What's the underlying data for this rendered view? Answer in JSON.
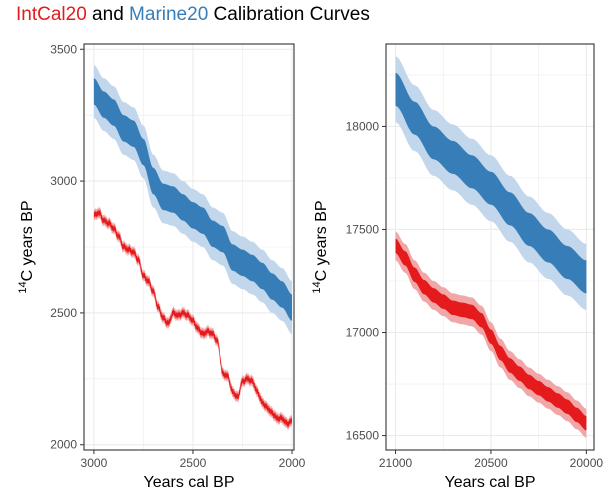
{
  "title": {
    "part1": "IntCal20",
    "part2": " and ",
    "part3": "Marine20",
    "part4": " Calibration Curves"
  },
  "colors": {
    "intcal": "#E41A1C",
    "intcal_light": "#F1A7A8",
    "marine": "#377EB8",
    "marine_light": "#C2D7EC",
    "grid": "#ebebeb",
    "panel_border": "#333333"
  },
  "chart_data": [
    {
      "type": "area",
      "xlabel": "Years cal BP",
      "ylabel": "C years BP",
      "ylabel_superscript": "14",
      "x_reversed": true,
      "xlim": [
        3050,
        1990
      ],
      "ylim": [
        1980,
        3520
      ],
      "x_ticks": [
        3000,
        2500,
        2000
      ],
      "y_ticks": [
        2000,
        2500,
        3000,
        3500
      ],
      "grid": true,
      "series": [
        {
          "name": "Marine20",
          "color_key": "marine",
          "x": [
            3000,
            2950,
            2900,
            2850,
            2800,
            2750,
            2700,
            2650,
            2600,
            2550,
            2500,
            2450,
            2400,
            2350,
            2300,
            2250,
            2200,
            2150,
            2100,
            2050,
            2000
          ],
          "y": [
            3340,
            3290,
            3260,
            3200,
            3180,
            3110,
            3000,
            2940,
            2930,
            2900,
            2870,
            2850,
            2800,
            2780,
            2710,
            2690,
            2670,
            2640,
            2600,
            2570,
            2520
          ],
          "sigma1": 50,
          "sigma2": 100
        },
        {
          "name": "IntCal20",
          "color_key": "intcal",
          "x": [
            3000,
            2975,
            2950,
            2925,
            2900,
            2875,
            2850,
            2825,
            2800,
            2775,
            2750,
            2725,
            2700,
            2675,
            2650,
            2625,
            2600,
            2575,
            2550,
            2525,
            2500,
            2475,
            2450,
            2425,
            2400,
            2375,
            2350,
            2325,
            2300,
            2275,
            2250,
            2225,
            2200,
            2175,
            2150,
            2125,
            2100,
            2075,
            2050,
            2025,
            2000
          ],
          "y": [
            2870,
            2880,
            2850,
            2840,
            2820,
            2790,
            2750,
            2740,
            2730,
            2700,
            2640,
            2620,
            2580,
            2520,
            2480,
            2460,
            2500,
            2490,
            2500,
            2490,
            2470,
            2440,
            2420,
            2430,
            2420,
            2390,
            2270,
            2260,
            2200,
            2180,
            2240,
            2250,
            2240,
            2200,
            2160,
            2140,
            2120,
            2100,
            2100,
            2080,
            2090
          ],
          "sigma1": 10,
          "sigma2": 20
        }
      ]
    },
    {
      "type": "area",
      "xlabel": "Years cal BP",
      "ylabel": "C years BP",
      "ylabel_superscript": "14",
      "x_reversed": true,
      "xlim": [
        21050,
        19960
      ],
      "ylim": [
        16430,
        18400
      ],
      "x_ticks": [
        21000,
        20500,
        20000
      ],
      "x_tick_labels": [
        "21000",
        "20500",
        "20000"
      ],
      "y_ticks": [
        16500,
        17000,
        17500,
        18000
      ],
      "grid": true,
      "series": [
        {
          "name": "Marine20",
          "color_key": "marine",
          "x": [
            21000,
            20900,
            20800,
            20700,
            20600,
            20500,
            20400,
            20300,
            20200,
            20100,
            20000
          ],
          "y": [
            18180,
            18040,
            17920,
            17850,
            17780,
            17700,
            17600,
            17500,
            17420,
            17340,
            17270
          ],
          "sigma1": 80,
          "sigma2": 160
        },
        {
          "name": "IntCal20",
          "color_key": "intcal",
          "x": [
            21000,
            20950,
            20900,
            20850,
            20800,
            20750,
            20700,
            20650,
            20600,
            20550,
            20500,
            20450,
            20400,
            20350,
            20300,
            20250,
            20200,
            20150,
            20100,
            20050,
            20000
          ],
          "y": [
            17420,
            17360,
            17280,
            17220,
            17180,
            17150,
            17120,
            17110,
            17100,
            17060,
            16980,
            16900,
            16840,
            16800,
            16760,
            16730,
            16700,
            16670,
            16640,
            16600,
            16560
          ],
          "sigma1": 35,
          "sigma2": 70
        }
      ]
    }
  ]
}
